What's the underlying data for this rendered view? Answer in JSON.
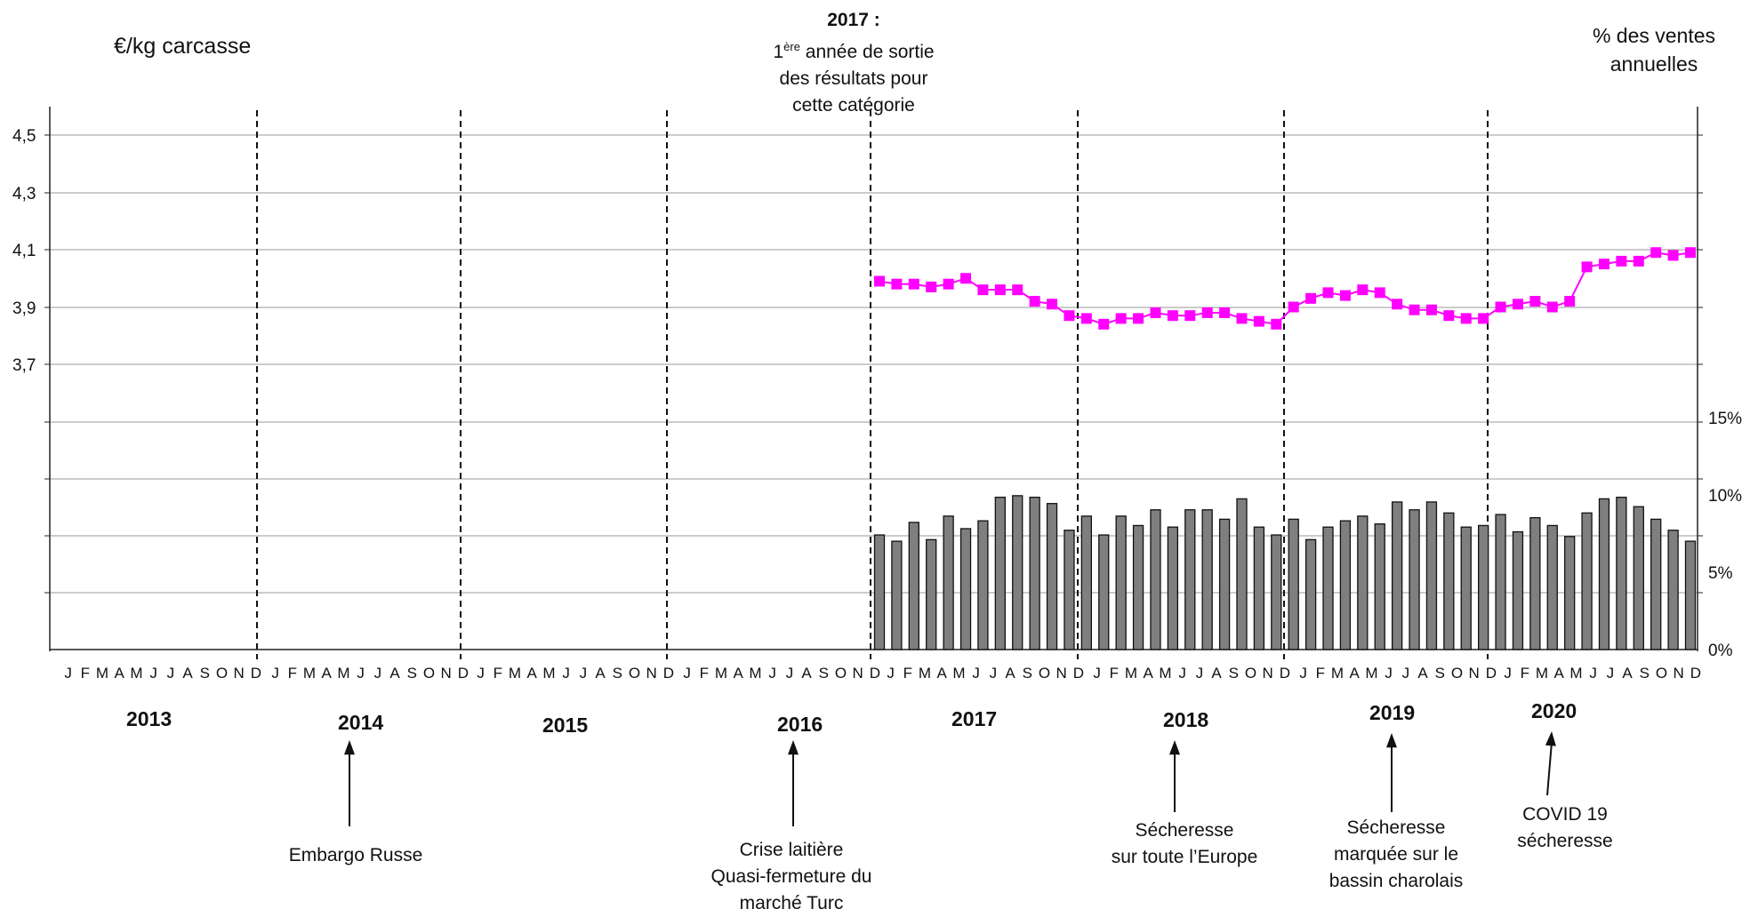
{
  "chart_data": {
    "type": "bar+line",
    "left_axis_title": "€/kg carcasse",
    "right_axis_title_line1": "% des ventes",
    "right_axis_title_line2": "annuelles",
    "left_ticks": [
      "4,5",
      "4,3",
      "4,1",
      "3,9",
      "3,7"
    ],
    "right_ticks": [
      "15%",
      "10%",
      "5%",
      "0%"
    ],
    "ylim_price": [
      3.1,
      4.6
    ],
    "ylim_share": [
      0,
      0.15
    ],
    "month_letters": [
      "J",
      "F",
      "M",
      "A",
      "M",
      "J",
      "J",
      "A",
      "S",
      "O",
      "N",
      "D"
    ],
    "years": [
      "2013",
      "2014",
      "2015",
      "2016",
      "2017",
      "2018",
      "2019",
      "2020"
    ],
    "price_series": {
      "start_year": "2017",
      "color": "#ff00ff",
      "values": [
        3.99,
        3.98,
        3.98,
        3.97,
        3.98,
        4.0,
        3.96,
        3.96,
        3.96,
        3.92,
        3.91,
        3.87,
        3.86,
        3.84,
        3.86,
        3.86,
        3.88,
        3.87,
        3.87,
        3.88,
        3.88,
        3.86,
        3.85,
        3.84,
        3.9,
        3.93,
        3.95,
        3.94,
        3.96,
        3.95,
        3.91,
        3.89,
        3.89,
        3.87,
        3.86,
        3.86,
        3.9,
        3.91,
        3.92,
        3.9,
        3.92,
        4.04,
        4.05,
        4.06,
        4.06,
        4.09,
        4.08,
        4.09
      ]
    },
    "sales_share_series": {
      "start_year": "2017",
      "color": "#7f7f7f",
      "values": [
        0.073,
        0.069,
        0.081,
        0.07,
        0.085,
        0.077,
        0.082,
        0.097,
        0.098,
        0.097,
        0.093,
        0.076,
        0.085,
        0.073,
        0.085,
        0.079,
        0.089,
        0.078,
        0.089,
        0.089,
        0.083,
        0.096,
        0.078,
        0.073,
        0.083,
        0.07,
        0.078,
        0.082,
        0.085,
        0.08,
        0.094,
        0.089,
        0.094,
        0.087,
        0.078,
        0.079,
        0.086,
        0.075,
        0.084,
        0.079,
        0.072,
        0.087,
        0.096,
        0.097,
        0.091,
        0.083,
        0.076,
        0.069
      ]
    }
  },
  "header": {
    "event_title": "2017 :",
    "event_sup": "ère",
    "event_line1_rest": " année de sortie",
    "event_line1_lead": "1",
    "event_line2": "des résultats pour",
    "event_line3": "cette catégorie"
  },
  "annotations": [
    {
      "lines": [
        "Embargo Russe"
      ]
    },
    {
      "lines": [
        "Crise laitière",
        "Quasi-fermeture du",
        "marché Turc"
      ]
    },
    {
      "lines": [
        "Sécheresse",
        "sur toute l’Europe"
      ]
    },
    {
      "lines": [
        "Sécheresse",
        "marquée sur le",
        "bassin charolais"
      ]
    },
    {
      "lines": [
        "COVID 19",
        "sécheresse"
      ]
    }
  ]
}
